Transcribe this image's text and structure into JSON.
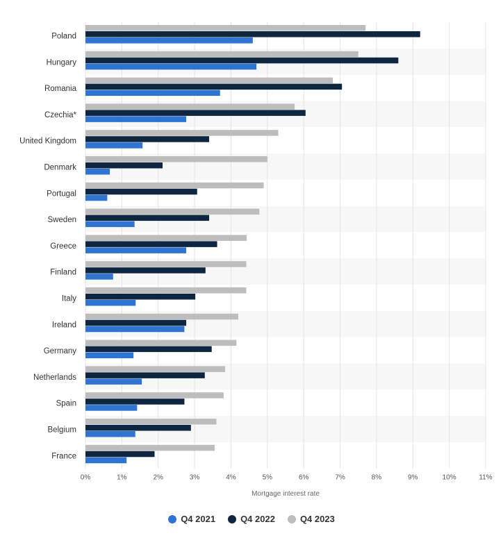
{
  "chart_data": {
    "type": "bar",
    "orientation": "horizontal",
    "categories": [
      "Poland",
      "Hungary",
      "Romania",
      "Czechia*",
      "United Kingdom",
      "Denmark",
      "Portugal",
      "Sweden",
      "Greece",
      "Finland",
      "Italy",
      "Ireland",
      "Germany",
      "Netherlands",
      "Spain",
      "Belgium",
      "France"
    ],
    "series": [
      {
        "name": "Q4 2023",
        "color": "#bdbdbd",
        "values": [
          7.7,
          7.5,
          6.8,
          5.75,
          5.3,
          5.0,
          4.9,
          4.78,
          4.43,
          4.42,
          4.42,
          4.2,
          4.15,
          3.84,
          3.8,
          3.6,
          3.55
        ]
      },
      {
        "name": "Q4 2022",
        "color": "#0f2640",
        "values": [
          9.2,
          8.6,
          7.05,
          6.05,
          3.4,
          2.12,
          3.07,
          3.4,
          3.62,
          3.3,
          3.02,
          2.77,
          3.47,
          3.28,
          2.72,
          2.9,
          1.9
        ]
      },
      {
        "name": "Q4 2021",
        "color": "#2f74d0",
        "values": [
          4.6,
          4.7,
          3.7,
          2.77,
          1.57,
          0.67,
          0.6,
          1.35,
          2.77,
          0.76,
          1.38,
          2.72,
          1.32,
          1.55,
          1.42,
          1.37,
          1.13
        ]
      }
    ],
    "xlabel": "Mortgage interest rate",
    "xticks": [
      "0%",
      "1%",
      "2%",
      "3%",
      "4%",
      "5%",
      "6%",
      "7%",
      "8%",
      "9%",
      "10%",
      "11%"
    ],
    "xlim": [
      0,
      11
    ],
    "grid": true,
    "legend_position": "bottom",
    "legend": [
      "Q4 2021",
      "Q4 2022",
      "Q4 2023"
    ]
  }
}
